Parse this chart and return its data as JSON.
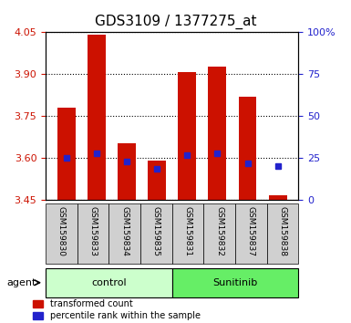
{
  "title": "GDS3109 / 1377275_at",
  "samples": [
    "GSM159830",
    "GSM159833",
    "GSM159834",
    "GSM159835",
    "GSM159831",
    "GSM159832",
    "GSM159837",
    "GSM159838"
  ],
  "bar_bottoms": [
    3.45,
    3.45,
    3.45,
    3.45,
    3.45,
    3.45,
    3.45,
    3.45
  ],
  "bar_tops": [
    3.78,
    4.04,
    3.655,
    3.592,
    3.908,
    3.928,
    3.82,
    3.468
  ],
  "percentile_vals": [
    3.601,
    3.619,
    3.589,
    3.562,
    3.611,
    3.619,
    3.583,
    3.572
  ],
  "ylim": [
    3.45,
    4.05
  ],
  "yticks_left": [
    3.45,
    3.6,
    3.75,
    3.9,
    4.05
  ],
  "yticks_right": [
    0,
    25,
    50,
    75,
    100
  ],
  "bar_color": "#cc1100",
  "percentile_color": "#2222cc",
  "bg_color": "#d8d8d8",
  "control_samples": [
    "GSM159830",
    "GSM159833",
    "GSM159834",
    "GSM159835"
  ],
  "sunitinib_samples": [
    "GSM159831",
    "GSM159832",
    "GSM159837",
    "GSM159838"
  ],
  "control_color": "#ccffcc",
  "sunitinib_color": "#66ee66",
  "agent_label": "agent",
  "control_label": "control",
  "sunitinib_label": "Sunitinib",
  "legend_red_label": "transformed count",
  "legend_blue_label": "percentile rank within the sample",
  "grid_color": "#000000",
  "bar_width": 0.6
}
